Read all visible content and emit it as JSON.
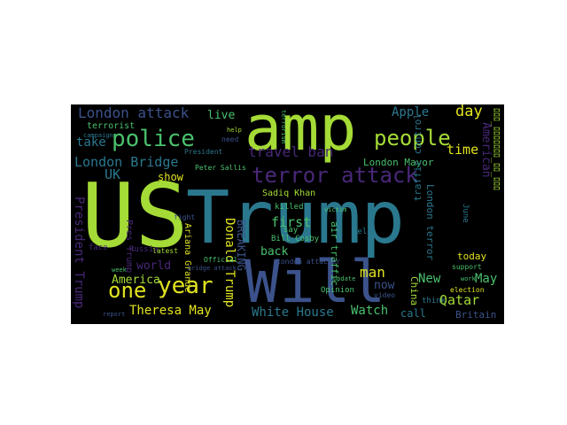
{
  "palette": {
    "lime": "#a5db36",
    "yellow": "#e1e31f",
    "green": "#4ac16d",
    "teal": "#2a788e",
    "blue": "#3b528b",
    "purple": "#482878",
    "mint": "#7ad151"
  },
  "words": {
    "us": "US",
    "trump": "Trump",
    "will": "Will",
    "amp": "amp",
    "police": "police",
    "people": "people",
    "terror_attack": "terror attack",
    "year": "year",
    "one": "one",
    "london_attack": "London attack",
    "london_bridge": "London Bridge",
    "travel_ban": "travel ban",
    "theresa_may": "Theresa May",
    "white_house": "White House",
    "apple": "Apple",
    "day": "day",
    "america": "America",
    "american": "American",
    "time": "time",
    "take": "take",
    "live": "live",
    "world": "world",
    "uk": "UK",
    "show": "show",
    "sadiq_khan": "Sadiq Khan",
    "first": "first",
    "back": "back",
    "man": "man",
    "now": "now",
    "new": "New",
    "may": "May",
    "qatar": "Qatar",
    "watch": "Watch",
    "call": "call",
    "today": "today",
    "britain": "Britain",
    "china": "China",
    "london_mayor": "London Mayor",
    "air_traffic": "air traffic",
    "traffic_control": "traffic control",
    "president_trump": "President Trump",
    "donald_trump": "Donald Trump",
    "breaking": "BREAKING",
    "ariana_grande": "Ariana Grande",
    "london_terror": "London terror",
    "killed": "killed",
    "say": "say",
    "bill_cosby": "Bill Cosby",
    "london_attacker": "London attacker",
    "terrorist": "terrorist",
    "russia": "Russia",
    "president": "President",
    "opinion": "Opinion",
    "support": "support",
    "election": "election",
    "work": "work",
    "think": "think",
    "tell": "tell",
    "video": "video",
    "june": "June",
    "need": "need",
    "help": "help",
    "face": "face",
    "latest": "latest",
    "official": "Official",
    "fight": "fight",
    "week": "week",
    "campaign": "campaign",
    "report": "report",
    "update": "update",
    "victim": "victim",
    "peter_sallis": "Peter Sallis",
    "pres_trump": "Pres Trump",
    "bridge_attack": "bridge attack",
    "terrorism": "terrorism",
    "glyphs": "ﾛﾛﾛ_ﾛﾛﾛﾛﾛﾛﾛ_ﾛﾛ_ﾛﾛﾛ"
  }
}
